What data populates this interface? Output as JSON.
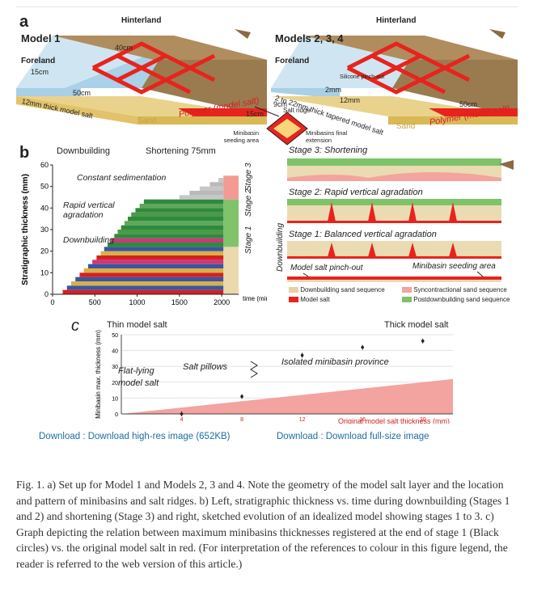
{
  "panel_a": {
    "letter": "a",
    "model1_title": "Model 1",
    "models234_title": "Models 2, 3, 4",
    "hinterland": "Hinterland",
    "foreland": "Foreland",
    "dim_40cm": "40cm",
    "dim_15cm": "15cm",
    "dim_50cm": "50cm",
    "dim_50cm_b": "50cm",
    "salt_12mm": "12mm thick model salt",
    "salt_tapered": "2 to 22mm thick tapered model salt",
    "sand": "Sand",
    "polymer": "Polymer (model salt)",
    "silicone_pinchout": "Silicone pinch-out",
    "inset_9cm": "9cm",
    "inset_15cm": "15cm",
    "inset_salt_ridge": "Salt ridge",
    "inset_seeding": "Minibasin seeding area",
    "inset_final": "Minibasins final extension",
    "dim_2mm": "2mm",
    "dim_12mm": "12mm"
  },
  "panel_b": {
    "letter": "b",
    "downbuilding": "Downbuilding",
    "shortening": "Shortening 75mm",
    "constant_sed": "Constant sedimentation",
    "rapid_vertical": "Rapid vertical agradation",
    "downbuilding2": "Downbuilding",
    "stage1": "Stage 1",
    "stage2": "Stage 2",
    "stage3": "Stage 3",
    "time_label": "time (min)",
    "right": {
      "stage3_title": "Stage 3: Shortening",
      "stage2_title": "Stage 2: Rapid vertical agradation",
      "stage1_title": "Stage 1: Balanced vertical agradation",
      "side_label": "Downbuilding",
      "pinch_out": "Model salt pinch-out",
      "seeding": "Minibasin seeding area",
      "legend": [
        {
          "label": "Downbuilding sand sequence",
          "color": "#e5d2a6"
        },
        {
          "label": "Syncontractional sand sequence",
          "color": "#f4a49c"
        },
        {
          "label": "Model salt",
          "color": "#e8231e"
        },
        {
          "label": "Postdownbuilding sand sequence",
          "color": "#7ec26a"
        }
      ]
    }
  },
  "panel_c": {
    "letter": "c",
    "thin": "Thin model salt",
    "thick": "Thick model salt",
    "flat_lying": "Flat-lying model salt",
    "salt_pillows": "Salt pillows",
    "isolated": "Isolated minibasin province"
  },
  "chart_data": [
    {
      "type": "bar",
      "title": "",
      "xlabel": "time (min)",
      "ylabel": "Stratigraphic thickness (mm)",
      "xlim": [
        0,
        2200
      ],
      "ylim": [
        0,
        60
      ],
      "xticks": [
        0,
        500,
        1000,
        1500,
        2000
      ],
      "yticks": [
        0,
        10,
        20,
        30,
        40,
        50,
        60
      ],
      "grid": false,
      "stages": [
        {
          "name": "Stage 1",
          "y_range": [
            0,
            22
          ]
        },
        {
          "name": "Stage 2",
          "y_range": [
            22,
            44
          ]
        },
        {
          "name": "Stage 3",
          "y_range": [
            44,
            55
          ]
        }
      ],
      "layers": [
        {
          "t_start": 120,
          "top": 2,
          "color": "#d62020"
        },
        {
          "t_start": 170,
          "top": 4,
          "color": "#3b55a0"
        },
        {
          "t_start": 220,
          "top": 6,
          "color": "#d8b04a"
        },
        {
          "t_start": 270,
          "top": 8,
          "color": "#3b55a0"
        },
        {
          "t_start": 320,
          "top": 10,
          "color": "#d62020"
        },
        {
          "t_start": 370,
          "top": 12,
          "color": "#d8b04a"
        },
        {
          "t_start": 420,
          "top": 14,
          "color": "#3b55a0"
        },
        {
          "t_start": 470,
          "top": 16,
          "color": "#c93a7a"
        },
        {
          "t_start": 520,
          "top": 18,
          "color": "#d62020"
        },
        {
          "t_start": 570,
          "top": 20,
          "color": "#d8b04a"
        },
        {
          "t_start": 610,
          "top": 22,
          "color": "#3b55a0"
        },
        {
          "t_start": 650,
          "top": 24,
          "color": "#2f8a3c"
        },
        {
          "t_start": 690,
          "top": 26,
          "color": "#c93a7a"
        },
        {
          "t_start": 730,
          "top": 28,
          "color": "#2f8a3c"
        },
        {
          "t_start": 770,
          "top": 30,
          "color": "#4a9a4a"
        },
        {
          "t_start": 810,
          "top": 32,
          "color": "#2f8a3c"
        },
        {
          "t_start": 850,
          "top": 34,
          "color": "#5fa85a"
        },
        {
          "t_start": 890,
          "top": 36,
          "color": "#2f8a3c"
        },
        {
          "t_start": 930,
          "top": 38,
          "color": "#4a9a4a"
        },
        {
          "t_start": 980,
          "top": 40,
          "color": "#2f8a3c"
        },
        {
          "t_start": 1030,
          "top": 42,
          "color": "#5fa85a"
        },
        {
          "t_start": 1080,
          "top": 44,
          "color": "#2f8a3c"
        },
        {
          "t_start": 1500,
          "top": 46,
          "color": "#c7c7c7"
        },
        {
          "t_start": 1620,
          "top": 48,
          "color": "#b9b9b9"
        },
        {
          "t_start": 1740,
          "top": 50,
          "color": "#c7c7c7"
        },
        {
          "t_start": 1860,
          "top": 52,
          "color": "#b9b9b9"
        },
        {
          "t_start": 1960,
          "top": 54,
          "color": "#c7c7c7"
        }
      ]
    },
    {
      "type": "scatter",
      "title": "",
      "xlabel": "Original model salt thickness (mm)",
      "ylabel": "Minibasin max. thickness (mm)",
      "xlim": [
        0,
        22
      ],
      "ylim": [
        0,
        50
      ],
      "xticks": [
        4,
        8,
        12,
        16,
        20
      ],
      "yticks": [
        0,
        10,
        20,
        30,
        40,
        50
      ],
      "grid": true,
      "points": [
        {
          "x": 4,
          "y": 0
        },
        {
          "x": 8,
          "y": 11
        },
        {
          "x": 12,
          "y": 37
        },
        {
          "x": 16,
          "y": 42
        },
        {
          "x": 20,
          "y": 46
        }
      ],
      "salt_wedge": {
        "x": [
          0,
          22
        ],
        "y": [
          0,
          22
        ],
        "color": "#f3a3a0"
      }
    }
  ],
  "links": {
    "hires": "Download : Download high-res image (652KB)",
    "full": "Download : Download full-size image"
  },
  "caption": "Fig. 1. a) Set up for Model 1 and Models 2, 3 and 4. Note the geometry of the model salt layer and the location and pattern of minibasins and salt ridges. b) Left, stratigraphic thickness vs. time during downbuilding (Stages 1 and 2) and shortening (Stage 3) and right, sketched evolution of an idealized model showing stages 1 to 3. c) Graph depicting the relation between maximum minibasins thicknesses registered at the end of stage 1 (Black circles) vs. the original model salt in red. (For interpretation of the references to colour in this figure legend, the reader is referred to the web version of this article.)"
}
